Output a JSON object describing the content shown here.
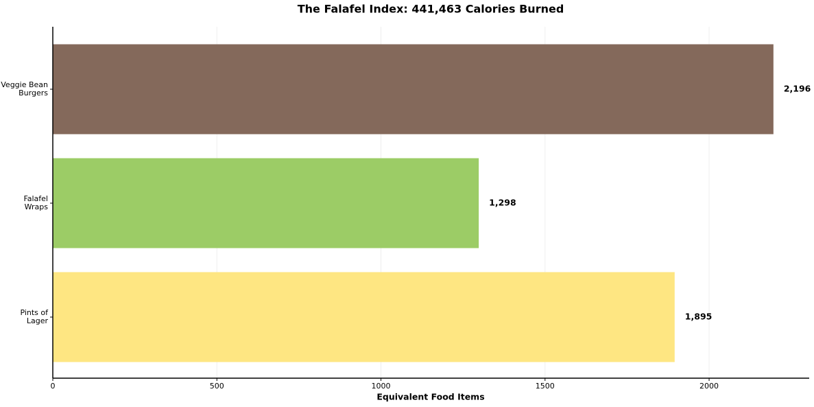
{
  "chart_data": {
    "type": "barh",
    "title": "The Falafel Index: 441,463 Calories Burned",
    "xlabel": "Equivalent Food Items",
    "categories": [
      "Veggie Bean\nBurgers",
      "Falafel\nWraps",
      "Pints of\nLager"
    ],
    "values": [
      2196,
      1298,
      1895
    ],
    "value_labels": [
      "2,196",
      "1,298",
      "1,895"
    ],
    "colors": [
      "#84695b",
      "#9ccc66",
      "#fee682"
    ],
    "xlim": [
      0,
      2305
    ],
    "xticks": [
      0,
      500,
      1000,
      1500,
      2000
    ],
    "grid": true
  }
}
